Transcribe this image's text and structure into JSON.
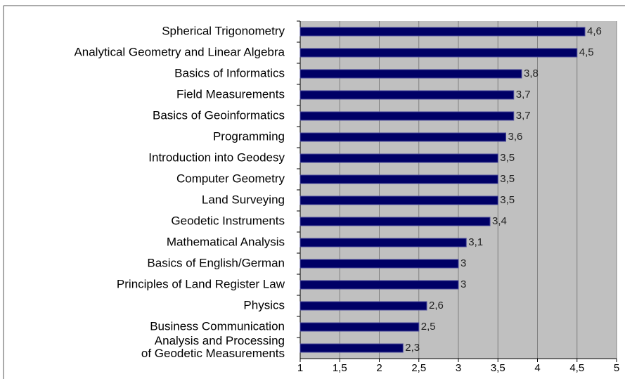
{
  "chart_data": {
    "type": "bar",
    "orientation": "horizontal",
    "categories": [
      "Spherical Trigonometry",
      "Analytical Geometry and Linear Algebra",
      "Basics of Informatics",
      "Field Measurements",
      "Basics of Geoinformatics",
      "Programming",
      "Introduction into Geodesy",
      "Computer Geometry",
      "Land Surveying",
      "Geodetic Instruments",
      "Mathematical Analysis",
      "Basics of English/German",
      "Principles of Land Register Law",
      "Physics",
      "Business Communication",
      "Analysis and Processing\nof Geodetic Measurements"
    ],
    "values": [
      4.6,
      4.5,
      3.8,
      3.7,
      3.7,
      3.6,
      3.5,
      3.5,
      3.5,
      3.4,
      3.1,
      3,
      3,
      2.6,
      2.5,
      2.3
    ],
    "value_labels": [
      "4,6",
      "4,5",
      "3,8",
      "3,7",
      "3,7",
      "3,6",
      "3,5",
      "3,5",
      "3,5",
      "3,4",
      "3,1",
      "3",
      "3",
      "2,6",
      "2,5",
      "2,3"
    ],
    "color": "#000066",
    "xlim": [
      1,
      5
    ],
    "xticks": [
      1,
      {
        "value": 1.5,
        "label": "1,5"
      },
      2,
      {
        "value": 2.5,
        "label": "2,5"
      },
      3,
      {
        "value": 3.5,
        "label": "3,5"
      },
      4,
      {
        "value": 4.5,
        "label": "4,5"
      },
      5
    ],
    "grid": true
  }
}
